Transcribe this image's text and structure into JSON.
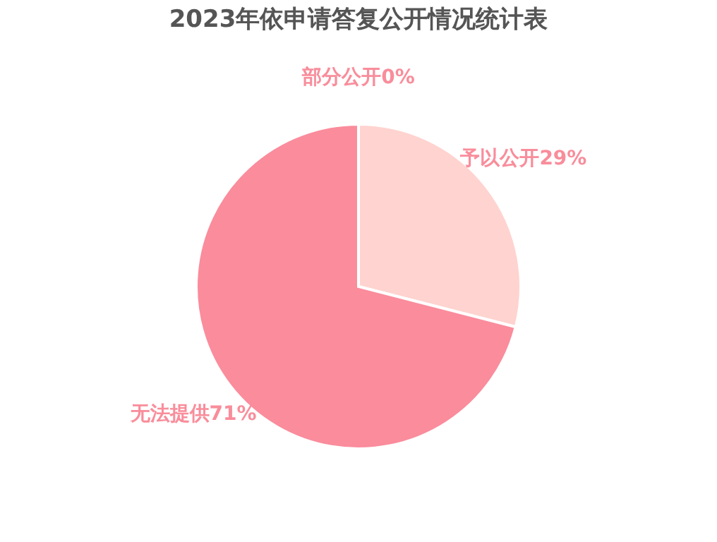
{
  "chart_data": {
    "type": "pie",
    "title": "2023年依申请答复公开情况统计表",
    "categories": [
      "予以公开",
      "无法提供",
      "部分公开"
    ],
    "values": [
      29,
      71,
      0
    ],
    "value_labels": [
      "29%",
      "71%",
      "0%"
    ],
    "colors": [
      "#ffd3cf",
      "#fa8c9c",
      "#ffffff"
    ],
    "legend": false
  }
}
